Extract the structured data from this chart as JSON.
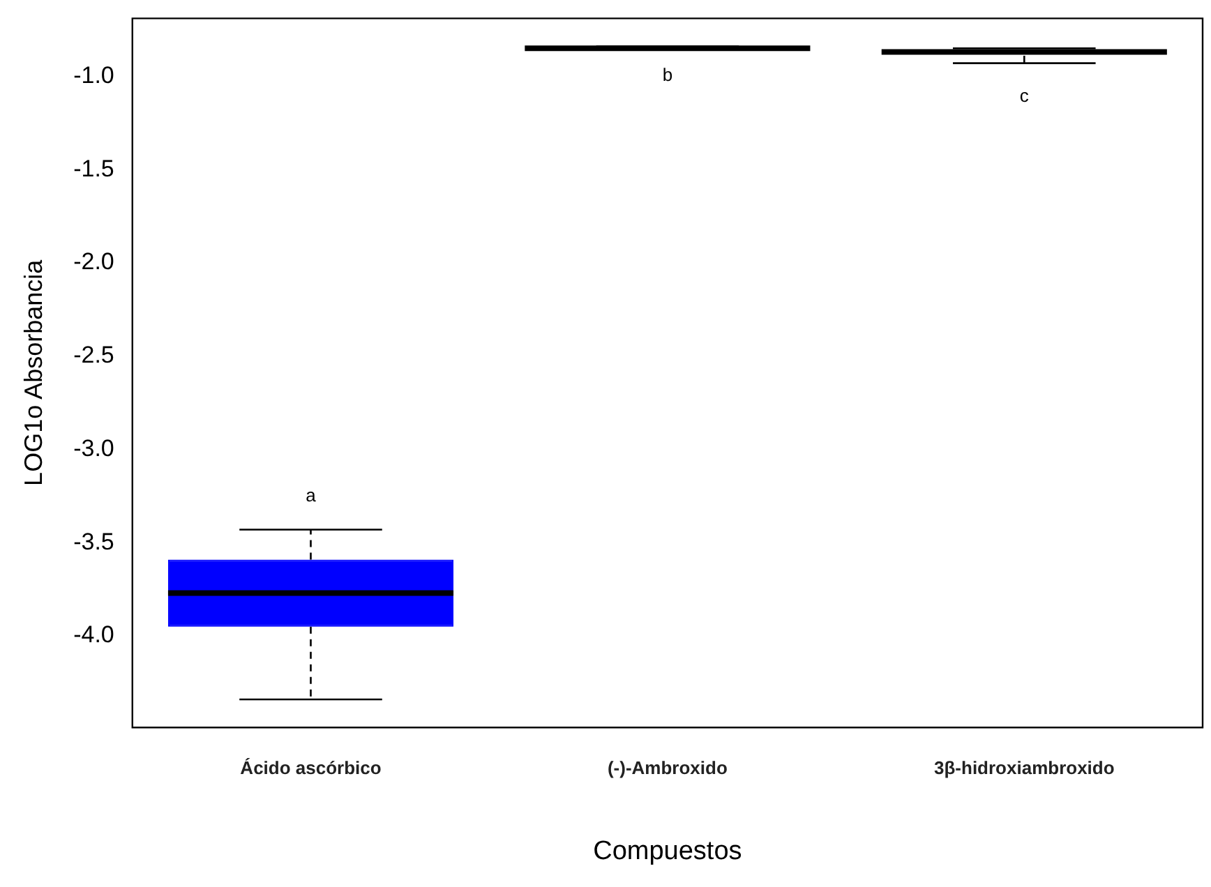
{
  "chart_data": {
    "type": "box",
    "xlabel": "Compuestos",
    "ylabel": "LOG1o Absorbancia",
    "categories": [
      "Ácido ascórbico",
      "(-)-Ambroxido",
      "3β-hidroxiambroxido"
    ],
    "colors": [
      "#0000ff",
      "#000000",
      "#ffffff"
    ],
    "boxes": [
      {
        "low": -4.34,
        "q1": -3.95,
        "median": -3.77,
        "q3": -3.59,
        "high": -3.43
      },
      {
        "low": -0.85,
        "q1": -0.85,
        "median": -0.85,
        "q3": -0.85,
        "high": -0.84
      },
      {
        "low": -0.93,
        "q1": -0.89,
        "median": -0.87,
        "q3": -0.85,
        "high": -0.85
      }
    ],
    "ylim": [
      -4.49,
      -0.69
    ],
    "yticks": [
      {
        "value": -4,
        "label": "-4.0"
      },
      -3.5,
      {
        "value": -3,
        "label": "-3.0"
      },
      -2.5,
      {
        "value": -2,
        "label": "-2.0"
      },
      -1.5,
      {
        "value": -1,
        "label": "-1.0"
      }
    ],
    "grid": false,
    "legend": false,
    "annotations": [
      "a",
      "b",
      "c"
    ]
  }
}
